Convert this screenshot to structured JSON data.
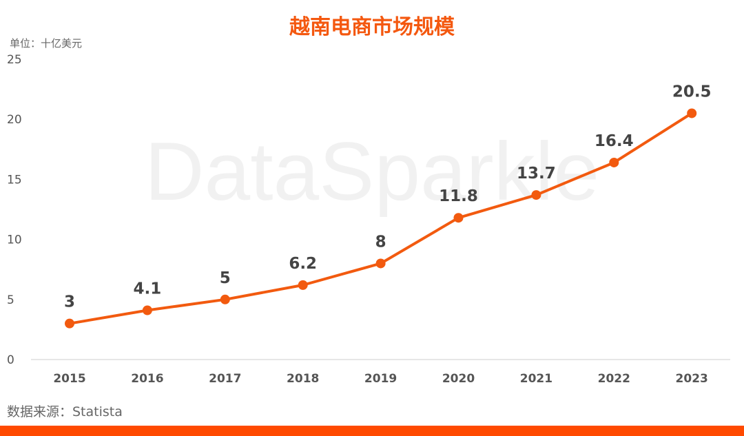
{
  "watermark": "DataSparkle",
  "chart_data": {
    "type": "line",
    "title": "越南电商市场规模",
    "unit_label": "单位：十亿美元",
    "source": "数据来源：Statista",
    "categories": [
      "2015",
      "2016",
      "2017",
      "2018",
      "2019",
      "2020",
      "2021",
      "2022",
      "2023"
    ],
    "series": [
      {
        "values": [
          3,
          4.1,
          5,
          6.2,
          8,
          11.8,
          13.7,
          16.4,
          20.5
        ]
      }
    ],
    "data_labels": [
      "3",
      "4.1",
      "5",
      "6.2",
      "8",
      "11.8",
      "13.7",
      "16.4",
      "20.5"
    ],
    "ylim": [
      0,
      25
    ],
    "yticks": [
      "0",
      "5",
      "10",
      "15",
      "20",
      "25"
    ],
    "grid": false,
    "legend": "none",
    "colors": {
      "line": "#F25A0F",
      "title": "#F4580F",
      "bottom_bar": "#FF4A00"
    }
  }
}
